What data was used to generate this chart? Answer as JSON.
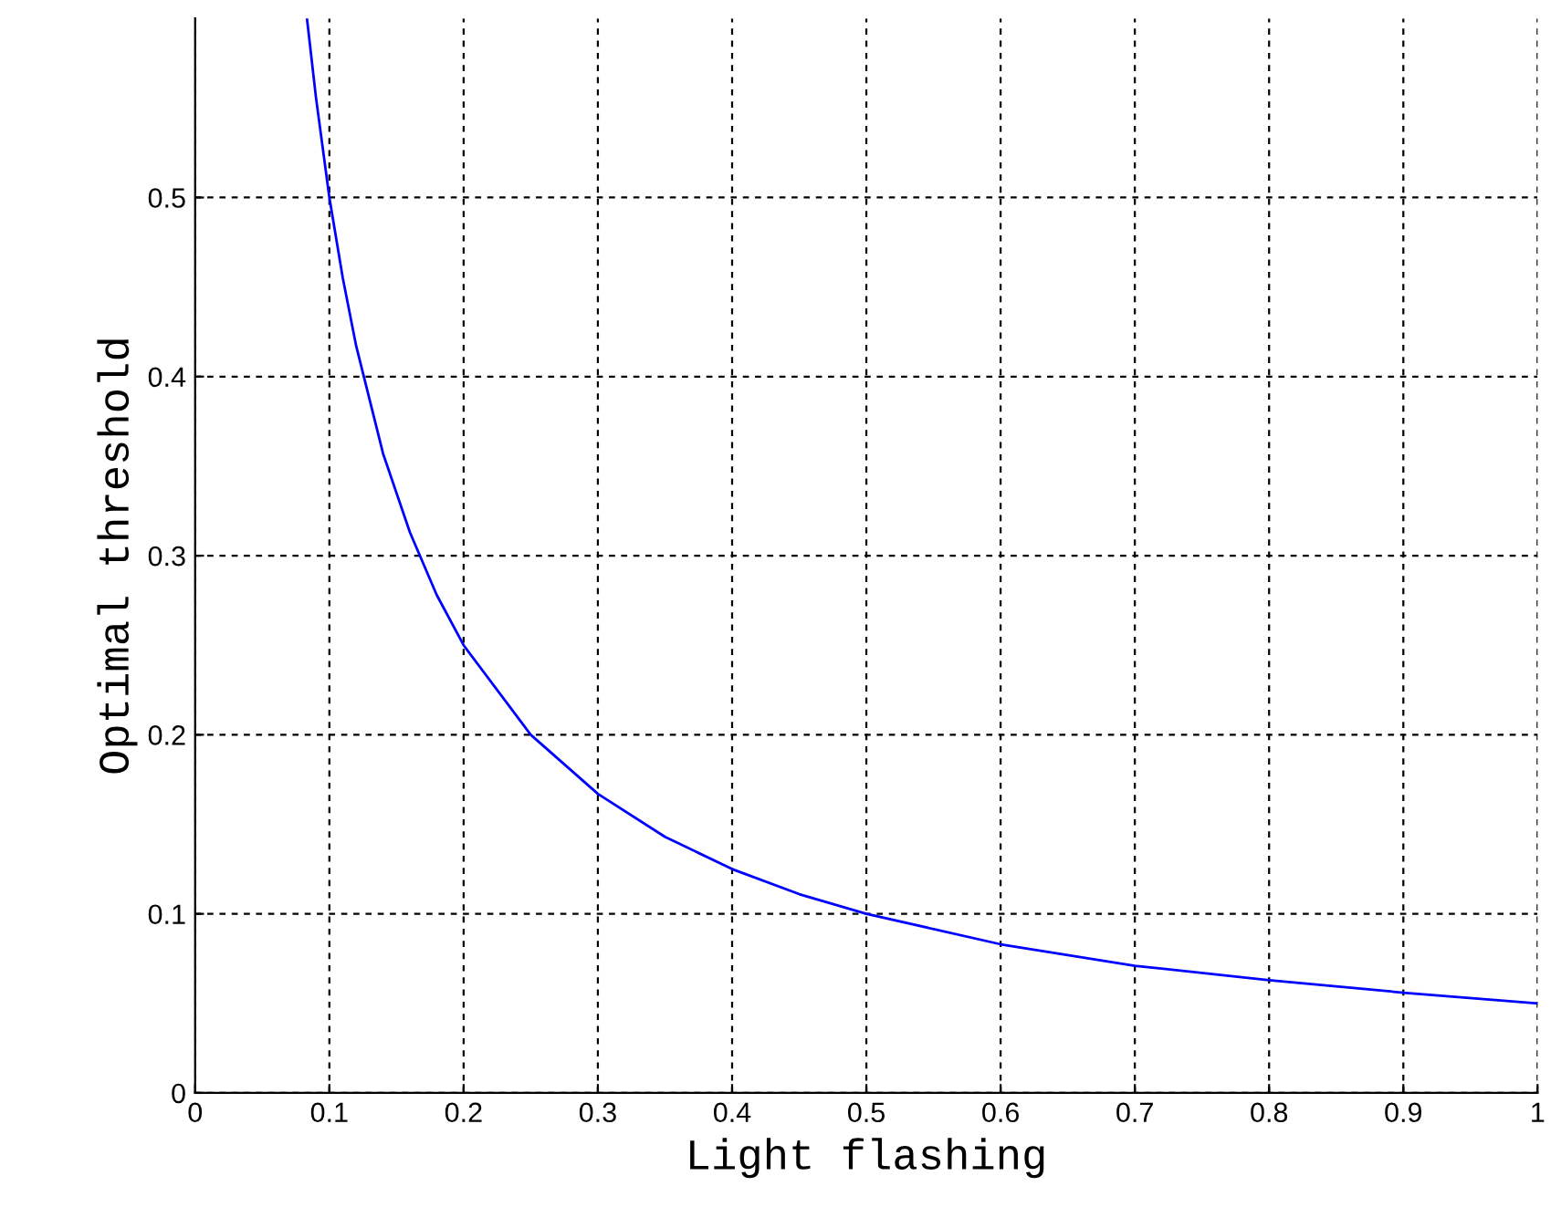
{
  "chart_data": {
    "type": "line",
    "xlabel": "Light flashing",
    "ylabel": "Optimal threshold",
    "series": [
      {
        "color": "#0000ff",
        "x": [
          0.0833,
          0.09,
          0.1,
          0.11,
          0.12,
          0.14,
          0.16,
          0.18,
          0.2,
          0.25,
          0.3,
          0.35,
          0.4,
          0.45,
          0.5,
          0.6,
          0.7,
          0.8,
          0.9,
          1.0
        ],
        "values": [
          0.6,
          0.556,
          0.5,
          0.455,
          0.417,
          0.357,
          0.313,
          0.278,
          0.25,
          0.2,
          0.167,
          0.143,
          0.125,
          0.111,
          0.1,
          0.083,
          0.071,
          0.063,
          0.056,
          0.05
        ]
      }
    ],
    "xlim": [
      0,
      1
    ],
    "ylim": [
      0,
      0.6
    ],
    "xticks": [
      0,
      0.1,
      0.2,
      0.3,
      0.4,
      0.5,
      0.6,
      0.7,
      0.8,
      0.9,
      1
    ],
    "yticks": [
      0,
      0.1,
      0.2,
      0.3,
      0.4,
      0.5
    ],
    "grid": true,
    "line_style": "solid",
    "marker": "none"
  }
}
